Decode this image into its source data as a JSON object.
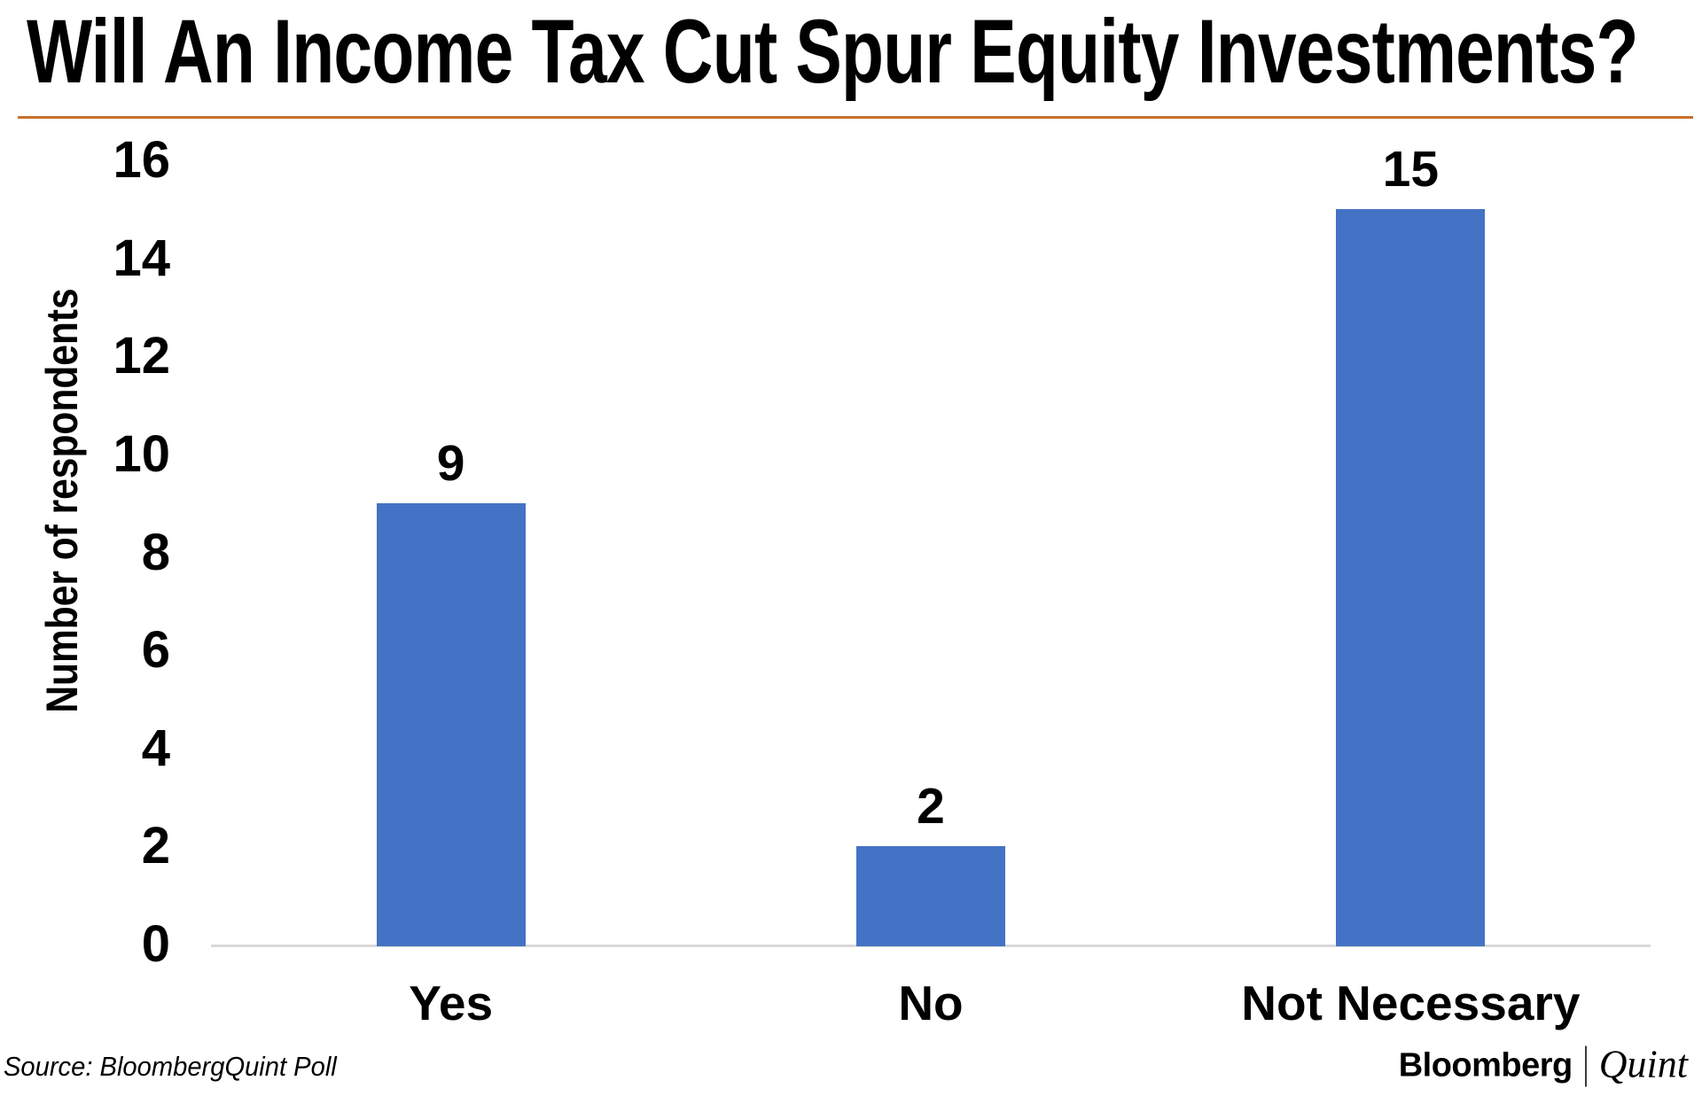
{
  "header": {
    "title": "Will An Income Tax Cut Spur Equity Investments?",
    "divider_color": "#C9702E"
  },
  "chart_data": {
    "type": "bar",
    "categories": [
      "Yes",
      "No",
      "Not Necessary"
    ],
    "values": [
      9,
      2,
      15
    ],
    "title": "Will An Income Tax Cut Spur Equity Investments?",
    "xlabel": "",
    "ylabel": "Number of respondents",
    "ylim": [
      0,
      16
    ],
    "yticks": [
      0,
      2,
      4,
      6,
      8,
      10,
      12,
      14,
      16
    ],
    "grid": false,
    "legend": false,
    "data_labels_shown": true,
    "bar_color": "#4472C4",
    "axis_line_color": "#D9D9D9"
  },
  "footer": {
    "source": "Source: BloombergQuint Poll",
    "logo": {
      "bloomberg": "Bloomberg",
      "separator": "|",
      "quint": "Quint"
    }
  }
}
